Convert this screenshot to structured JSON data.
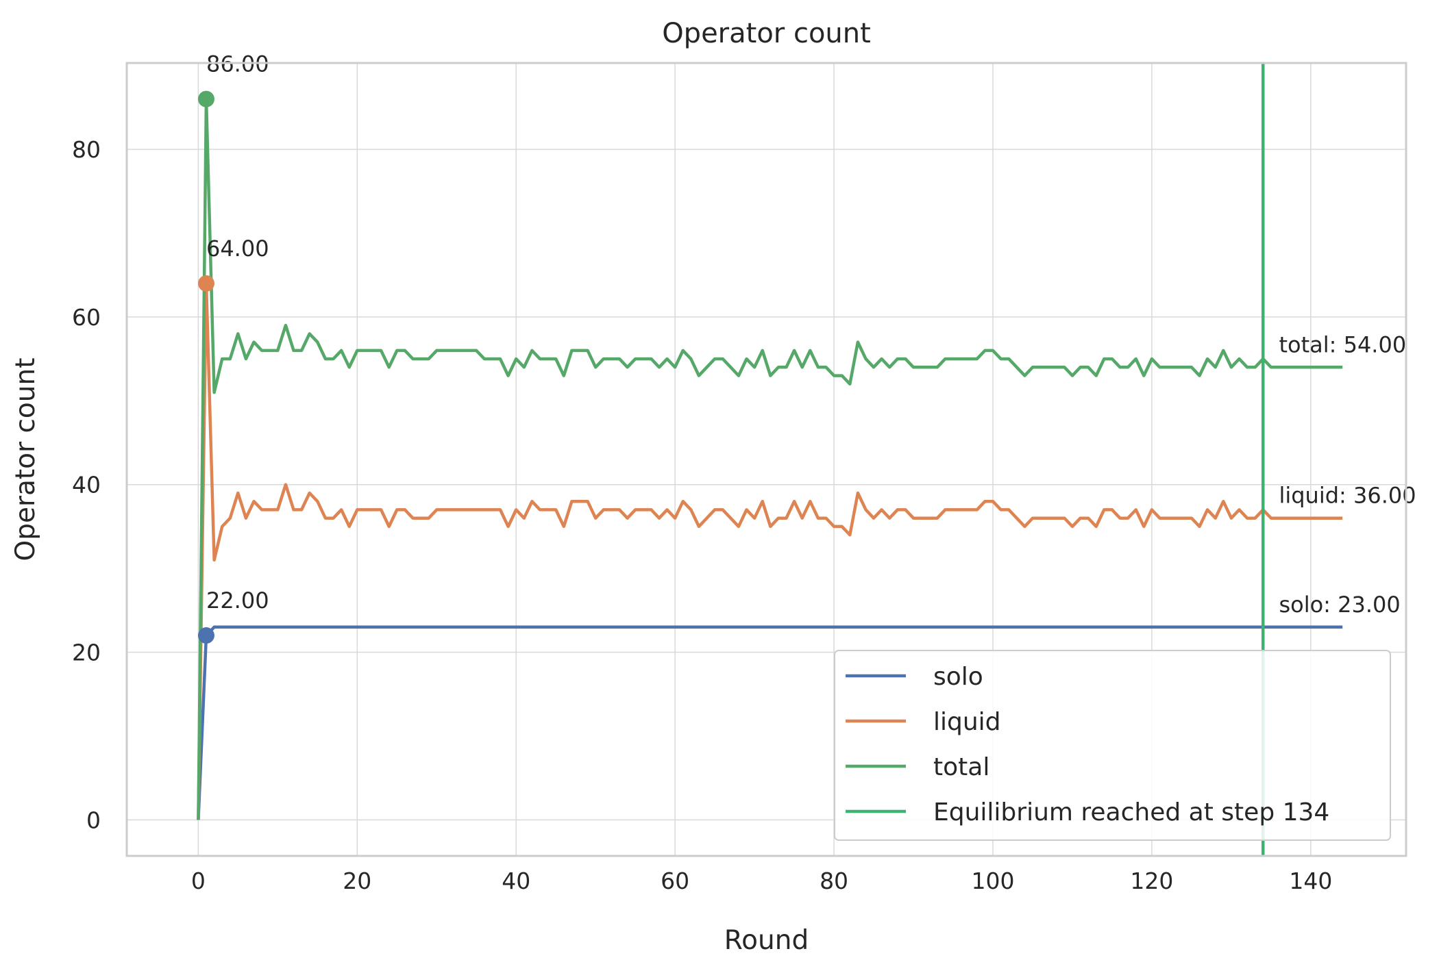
{
  "chart_data": {
    "type": "line",
    "title": "Operator count",
    "xlabel": "Round",
    "ylabel": "Operator count",
    "xlim": [
      -9,
      152
    ],
    "ylim": [
      -4.3,
      90.3
    ],
    "xticks": [
      0,
      20,
      40,
      60,
      80,
      100,
      120,
      140
    ],
    "yticks": [
      0,
      20,
      40,
      60,
      80
    ],
    "grid": true,
    "legend_position": "lower-right",
    "series": [
      {
        "name": "solo",
        "color": "#4c72b0",
        "x": [
          0,
          1,
          2,
          144
        ],
        "y": [
          0,
          22,
          23,
          23
        ],
        "peak": {
          "x": 1,
          "y": 22,
          "label": "22.00"
        },
        "end_label": "solo: 23.00"
      },
      {
        "name": "liquid",
        "color": "#dd8452",
        "x_start": 0,
        "y": [
          0,
          64,
          31,
          35,
          36,
          39,
          36,
          38,
          37,
          37,
          37,
          40,
          37,
          37,
          39,
          38,
          36,
          36,
          37,
          35,
          37,
          37,
          37,
          37,
          35,
          37,
          37,
          36,
          36,
          36,
          37,
          37,
          37,
          37,
          37,
          37,
          37,
          37,
          37,
          35,
          37,
          36,
          38,
          37,
          37,
          37,
          35,
          38,
          38,
          38,
          36,
          37,
          37,
          37,
          36,
          37,
          37,
          37,
          36,
          37,
          36,
          38,
          37,
          35,
          36,
          37,
          37,
          36,
          35,
          37,
          36,
          38,
          35,
          36,
          36,
          38,
          36,
          38,
          36,
          36,
          35,
          35,
          34,
          39,
          37,
          36,
          37,
          36,
          37,
          37,
          36,
          36,
          36,
          36,
          37,
          37,
          37,
          37,
          37,
          38,
          38,
          37,
          37,
          36,
          35,
          36,
          36,
          36,
          36,
          36,
          35,
          36,
          36,
          35,
          37,
          37,
          36,
          36,
          37,
          35,
          37,
          36,
          36,
          36,
          36,
          36,
          35,
          37,
          36,
          38,
          36,
          37,
          36,
          36,
          37,
          36,
          36,
          36,
          36,
          36,
          36,
          36,
          36,
          36,
          36
        ],
        "peak": {
          "x": 1,
          "y": 64,
          "label": "64.00"
        },
        "end_label": "liquid: 36.00"
      },
      {
        "name": "total",
        "color": "#55a868",
        "x_start": 0,
        "y": [
          0,
          86,
          51,
          55,
          55,
          58,
          55,
          57,
          56,
          56,
          56,
          59,
          56,
          56,
          58,
          57,
          55,
          55,
          56,
          54,
          56,
          56,
          56,
          56,
          54,
          56,
          56,
          55,
          55,
          55,
          56,
          56,
          56,
          56,
          56,
          56,
          55,
          55,
          55,
          53,
          55,
          54,
          56,
          55,
          55,
          55,
          53,
          56,
          56,
          56,
          54,
          55,
          55,
          55,
          54,
          55,
          55,
          55,
          54,
          55,
          54,
          56,
          55,
          53,
          54,
          55,
          55,
          54,
          53,
          55,
          54,
          56,
          53,
          54,
          54,
          56,
          54,
          56,
          54,
          54,
          53,
          53,
          52,
          57,
          55,
          54,
          55,
          54,
          55,
          55,
          54,
          54,
          54,
          54,
          55,
          55,
          55,
          55,
          55,
          56,
          56,
          55,
          55,
          54,
          53,
          54,
          54,
          54,
          54,
          54,
          53,
          54,
          54,
          53,
          55,
          55,
          54,
          54,
          55,
          53,
          55,
          54,
          54,
          54,
          54,
          54,
          53,
          55,
          54,
          56,
          54,
          55,
          54,
          54,
          55,
          54,
          54,
          54,
          54,
          54,
          54,
          54,
          54,
          54,
          54
        ],
        "peak": {
          "x": 1,
          "y": 86,
          "label": "86.00"
        },
        "end_label": "total: 54.00"
      }
    ],
    "vline": {
      "x": 134,
      "color": "#3cb371",
      "label": "Equilibrium reached at step 134"
    },
    "legend": [
      "solo",
      "liquid",
      "total",
      "Equilibrium reached at step 134"
    ]
  }
}
